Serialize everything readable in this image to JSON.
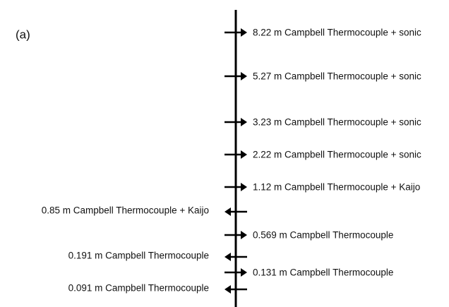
{
  "panel_label": "(a)",
  "right_instruments": [
    "8.22 m Campbell Thermocouple + sonic",
    "5.27 m Campbell Thermocouple + sonic",
    "3.23 m Campbell Thermocouple + sonic",
    "2.22 m Campbell Thermocouple + sonic",
    "1.12 m Campbell Thermocouple + Kaijo",
    "0.569 m Campbell Thermocouple",
    "0.131 m Campbell Thermocouple"
  ],
  "left_instruments": [
    "0.85 m Campbell Thermocouple + Kaijo",
    "0.191 m Campbell Thermocouple",
    "0.091 m Campbell Thermocouple"
  ]
}
